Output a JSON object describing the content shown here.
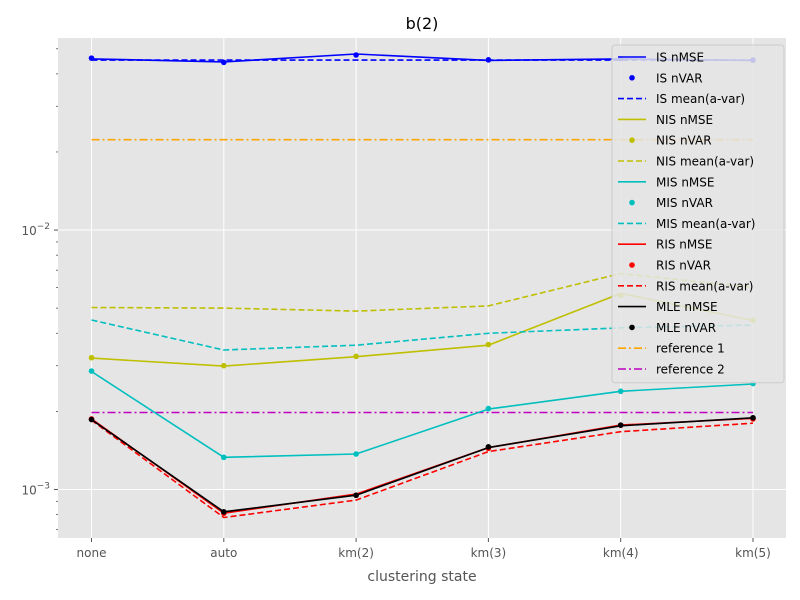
{
  "chart_data": {
    "type": "line",
    "title": "b(2)",
    "xlabel": "clustering state",
    "ylabel": "",
    "y_scale": "log",
    "ylim": [
      0.00065,
      0.055
    ],
    "categories": [
      "none",
      "auto",
      "km(2)",
      "km(3)",
      "km(4)",
      "km(5)"
    ],
    "y_tick_labels": [
      {
        "value": 0.001,
        "base": "10",
        "exp": "−3"
      },
      {
        "value": 0.01,
        "base": "10",
        "exp": "−2"
      }
    ],
    "grid": true,
    "legend_position": "top-right",
    "series": [
      {
        "name": "IS nMSE",
        "style": "solid",
        "marker": false,
        "color": "#0000ff",
        "values": [
          0.0457,
          0.0445,
          0.0477,
          0.0451,
          0.0457,
          0.0451
        ]
      },
      {
        "name": "IS nVAR",
        "style": "none",
        "marker": true,
        "color": "#0000ff",
        "values": [
          0.046,
          0.0443,
          0.0473,
          0.0453,
          0.0458,
          0.0452
        ]
      },
      {
        "name": "IS mean(a-var)",
        "style": "dashed",
        "marker": false,
        "color": "#0000ff",
        "values": [
          0.0452,
          0.0452,
          0.0452,
          0.0452,
          0.0452,
          0.0452
        ]
      },
      {
        "name": "NIS nMSE",
        "style": "solid",
        "marker": false,
        "color": "#bfbf00",
        "values": [
          0.00321,
          0.00299,
          0.00325,
          0.0036,
          0.0057,
          0.00448
        ]
      },
      {
        "name": "NIS nVAR",
        "style": "none",
        "marker": true,
        "color": "#bfbf00",
        "values": [
          0.00322,
          0.003,
          0.00326,
          0.00362,
          0.0056,
          0.00449
        ]
      },
      {
        "name": "NIS mean(a-var)",
        "style": "dashed",
        "marker": false,
        "color": "#bfbf00",
        "values": [
          0.00503,
          0.005,
          0.00487,
          0.0051,
          0.0068,
          0.006
        ]
      },
      {
        "name": "MIS nMSE",
        "style": "solid",
        "marker": false,
        "color": "#00bfbf",
        "values": [
          0.00285,
          0.00133,
          0.00137,
          0.00204,
          0.00239,
          0.00255
        ]
      },
      {
        "name": "MIS nVAR",
        "style": "none",
        "marker": true,
        "color": "#00bfbf",
        "values": [
          0.00286,
          0.00133,
          0.00137,
          0.00205,
          0.00239,
          0.00256
        ]
      },
      {
        "name": "MIS mean(a-var)",
        "style": "dashed",
        "marker": false,
        "color": "#00bfbf",
        "values": [
          0.0045,
          0.00345,
          0.0036,
          0.004,
          0.0042,
          0.0043
        ]
      },
      {
        "name": "RIS nMSE",
        "style": "solid",
        "marker": false,
        "color": "#ff0000",
        "values": [
          0.00187,
          0.00081,
          0.00096,
          0.00145,
          0.00177,
          0.00188
        ]
      },
      {
        "name": "RIS nVAR",
        "style": "none",
        "marker": true,
        "color": "#ff0000",
        "values": [
          0.00187,
          0.00081,
          0.00095,
          0.00144,
          0.00177,
          0.00187
        ]
      },
      {
        "name": "RIS mean(a-var)",
        "style": "dashed",
        "marker": false,
        "color": "#ff0000",
        "values": [
          0.00185,
          0.00078,
          0.00091,
          0.0014,
          0.00167,
          0.0018
        ]
      },
      {
        "name": "MLE nMSE",
        "style": "solid",
        "marker": false,
        "color": "#000000",
        "values": [
          0.00186,
          0.00082,
          0.00095,
          0.00145,
          0.00176,
          0.00189
        ]
      },
      {
        "name": "MLE nVAR",
        "style": "none",
        "marker": true,
        "color": "#000000",
        "values": [
          0.00186,
          0.00082,
          0.00095,
          0.00146,
          0.00177,
          0.00189
        ]
      },
      {
        "name": "reference 1",
        "style": "dashdot",
        "marker": false,
        "color": "#ffa500",
        "values": [
          0.0223,
          0.0223,
          0.0223,
          0.0223,
          0.0223,
          0.0223
        ]
      },
      {
        "name": "reference 2",
        "style": "dashdot",
        "marker": false,
        "color": "#bf00bf",
        "values": [
          0.00198,
          0.00198,
          0.00198,
          0.00198,
          0.00198,
          0.00198
        ]
      }
    ]
  }
}
